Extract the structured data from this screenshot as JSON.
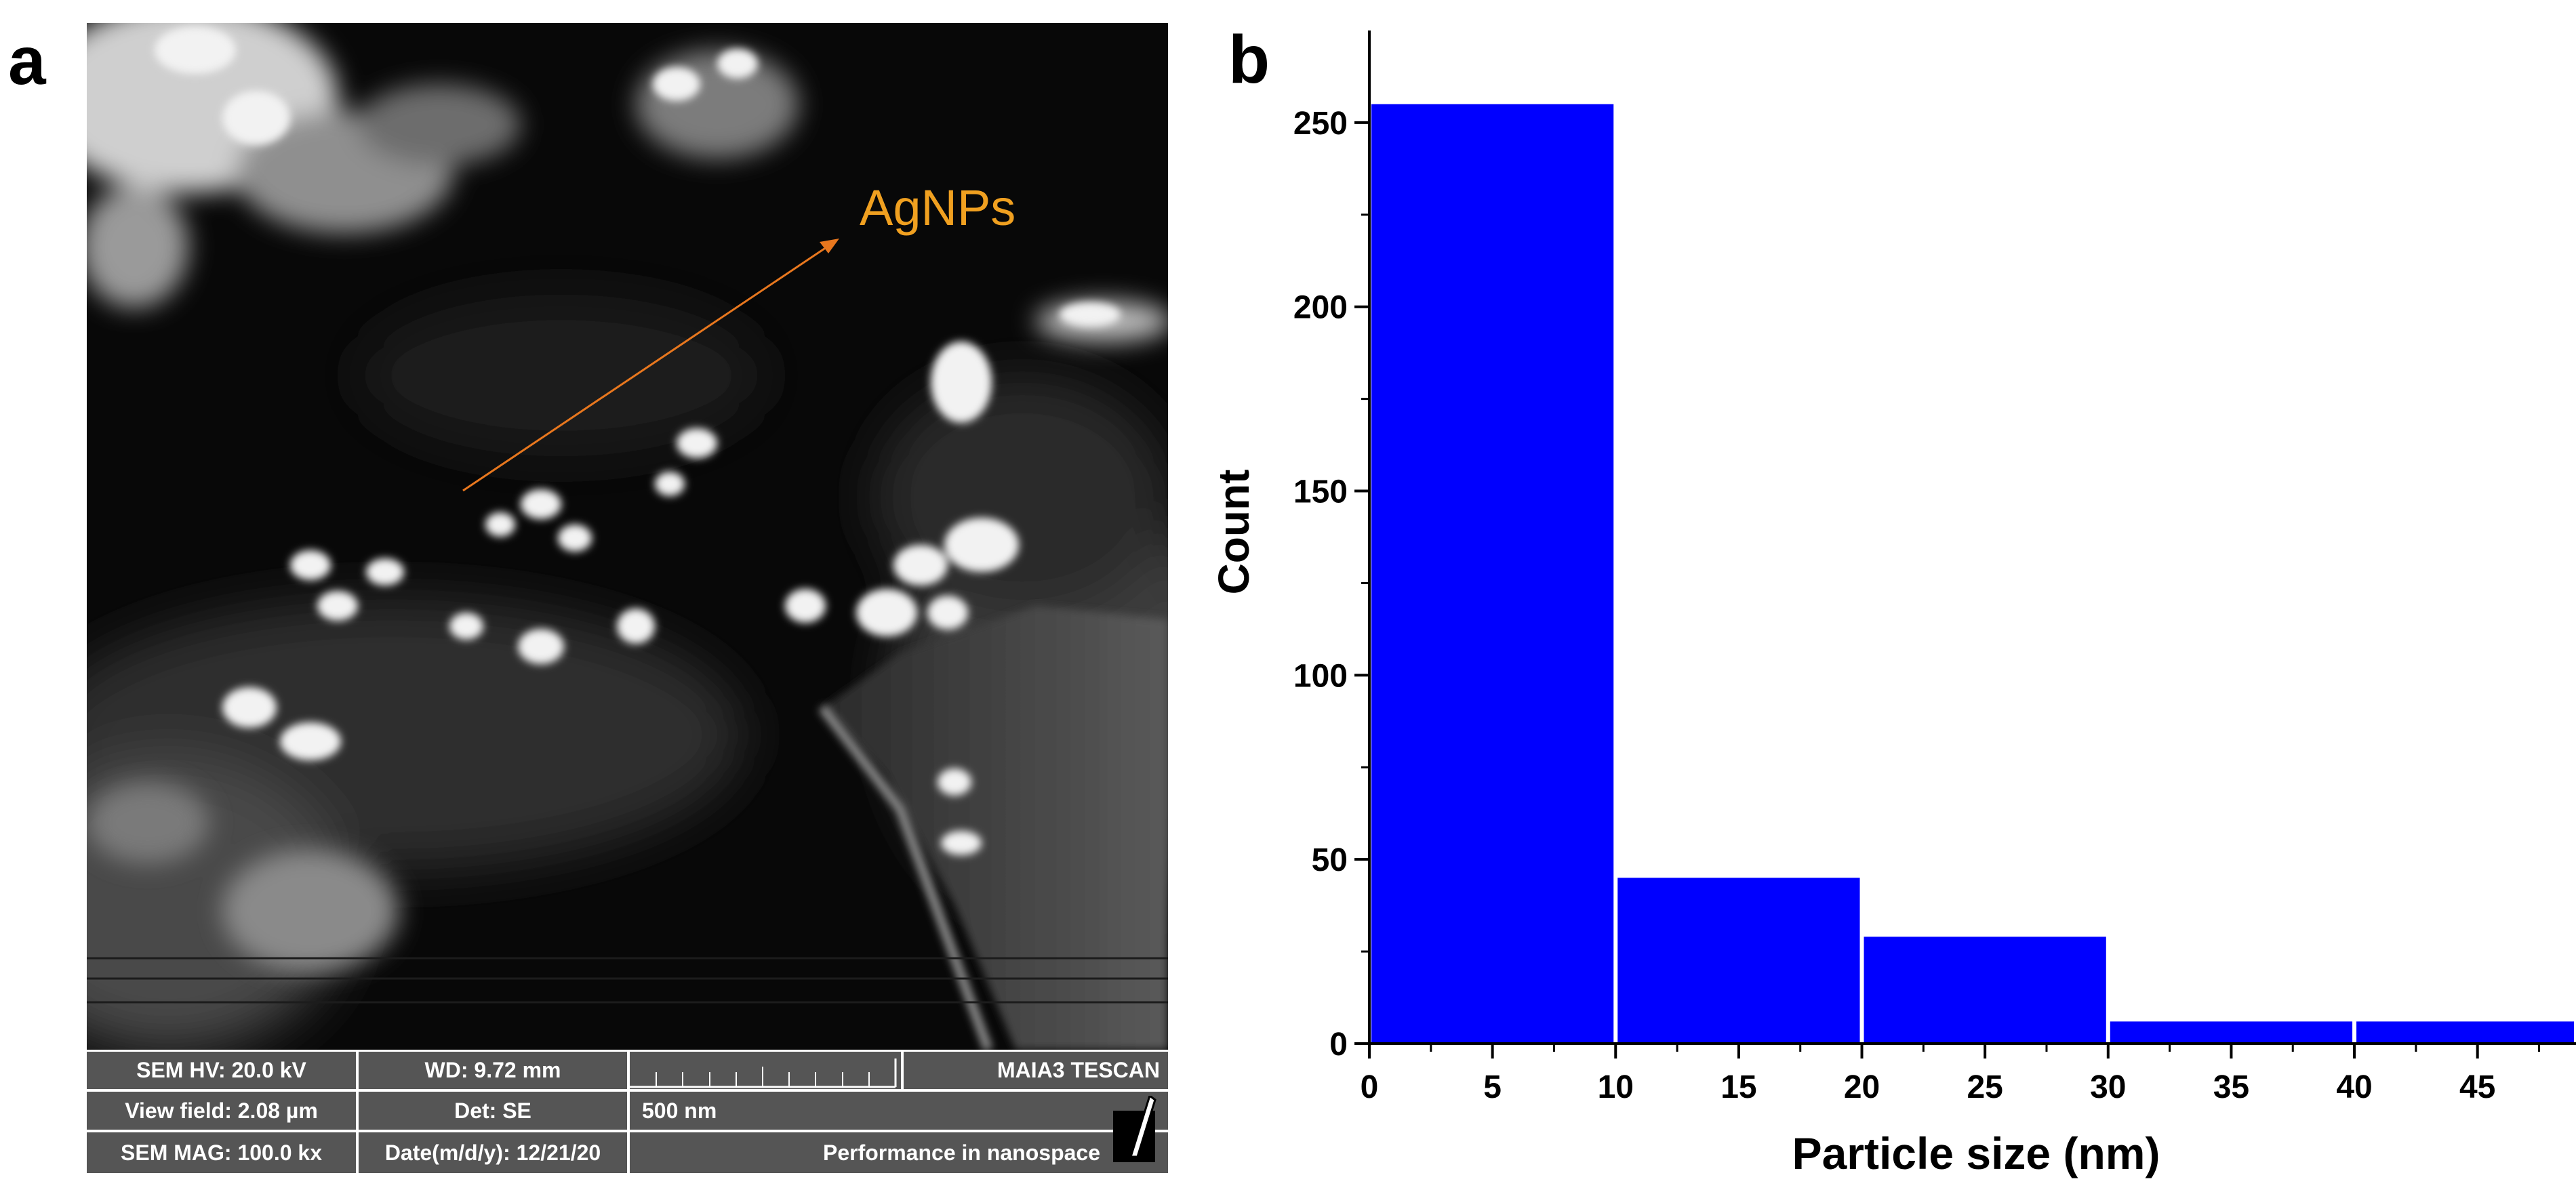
{
  "panels": {
    "a": "a",
    "b": "b"
  },
  "sem": {
    "annotation": "AgNPs",
    "annotation_color": "#f0a020",
    "arrow_color": "#e8771e",
    "info": {
      "hv": "SEM HV: 20.0 kV",
      "wd": "WD: 9.72 mm",
      "brand": "MAIA3 TESCAN",
      "view_field": "View field: 2.08 µm",
      "det": "Det: SE",
      "scale": "500 nm",
      "mag": "SEM MAG: 100.0 kx",
      "date": "Date(m/d/y): 12/21/20",
      "tagline": "Performance in nanospace"
    }
  },
  "chart_data": {
    "type": "bar",
    "title": "",
    "xlabel": "Particle size (nm)",
    "ylabel": "Count",
    "bins": [
      [
        0,
        10
      ],
      [
        10,
        20
      ],
      [
        20,
        30
      ],
      [
        30,
        40
      ],
      [
        40,
        50
      ]
    ],
    "values": [
      255,
      45,
      29,
      6,
      6
    ],
    "xlim": [
      0,
      49
    ],
    "ylim": [
      0,
      275
    ],
    "xticks": [
      "0",
      "5",
      "10",
      "15",
      "20",
      "25",
      "30",
      "35",
      "40",
      "45"
    ],
    "xtick_values": [
      0,
      5,
      10,
      15,
      20,
      25,
      30,
      35,
      40,
      45
    ],
    "yticks": [
      "0",
      "50",
      "100",
      "150",
      "200",
      "250"
    ],
    "ytick_values": [
      0,
      50,
      100,
      150,
      200,
      250
    ],
    "bar_color": "#0000ff",
    "grid": false,
    "legend": "none"
  }
}
